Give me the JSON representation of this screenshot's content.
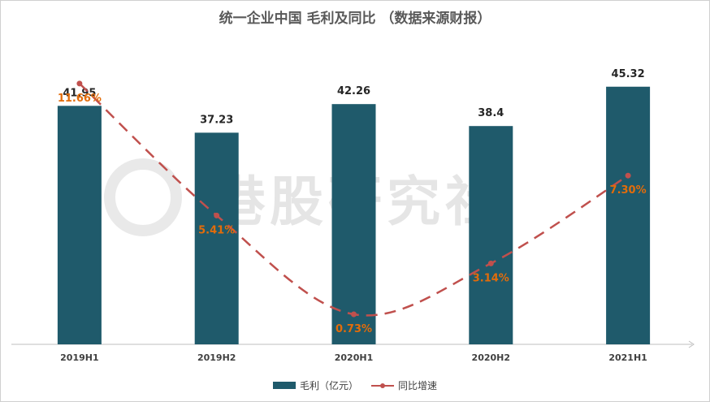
{
  "colors": {
    "bar": "#1f5a6b",
    "line": "#c0504d",
    "pct_label": "#e36c0a",
    "value_label": "#262626",
    "axis_label": "#404040"
  },
  "watermark": {
    "text": "港股研究社"
  },
  "chart_data": {
    "type": "bar",
    "title": "统一企业中国 毛利及同比 （数据来源财报）",
    "categories": [
      "2019H1",
      "2019H2",
      "2020H1",
      "2020H2",
      "2021H1"
    ],
    "value_labels": [
      "41.95",
      "37.23",
      "42.26",
      "38.4",
      "45.32"
    ],
    "growth_labels": [
      "11.66%",
      "5.41%",
      "0.73%",
      "3.14%",
      "7.30%"
    ],
    "series": [
      {
        "name": "毛利（亿元）",
        "type": "bar",
        "axis": "left",
        "values": [
          41.95,
          37.23,
          42.26,
          38.4,
          45.32
        ]
      },
      {
        "name": "同比增速",
        "type": "line",
        "style": "dashed smooth",
        "axis": "right",
        "values": [
          11.66,
          5.41,
          0.73,
          3.14,
          7.3
        ]
      }
    ],
    "ylim": [
      0,
      50
    ],
    "ylim_right": [
      -1,
      12
    ],
    "grid": false,
    "legend": "bottom"
  }
}
